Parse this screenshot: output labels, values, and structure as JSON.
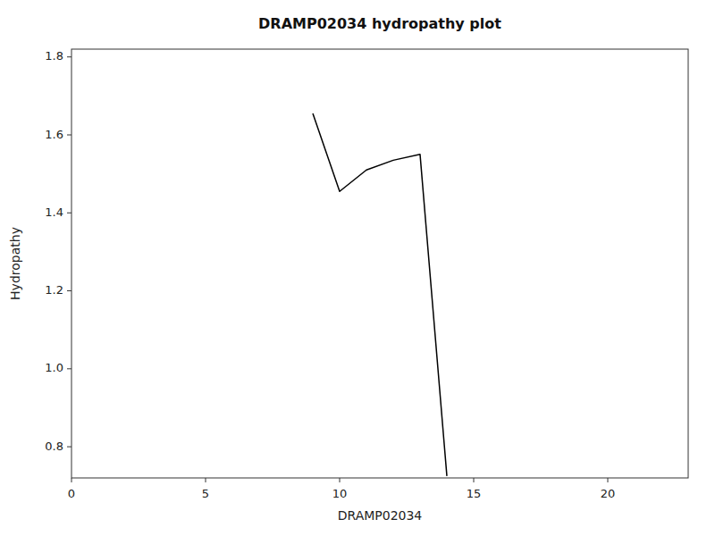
{
  "chart_data": {
    "type": "line",
    "title": "DRAMP02034 hydropathy plot",
    "xlabel": "DRAMP02034",
    "ylabel": "Hydropathy",
    "x": [
      9.0,
      10.0,
      11.0,
      12.0,
      13.0,
      14.0
    ],
    "values": [
      1.655,
      1.455,
      1.51,
      1.535,
      1.55,
      0.725
    ],
    "color": "#000000",
    "xlim": [
      0,
      23
    ],
    "ylim": [
      0.72,
      1.82
    ],
    "xticks": [
      0,
      5,
      10,
      15,
      20
    ],
    "yticks": [
      0.8,
      {
        "value": 1.0,
        "label": "1.0"
      },
      1.2,
      1.4,
      1.6,
      1.8
    ],
    "grid": false
  }
}
